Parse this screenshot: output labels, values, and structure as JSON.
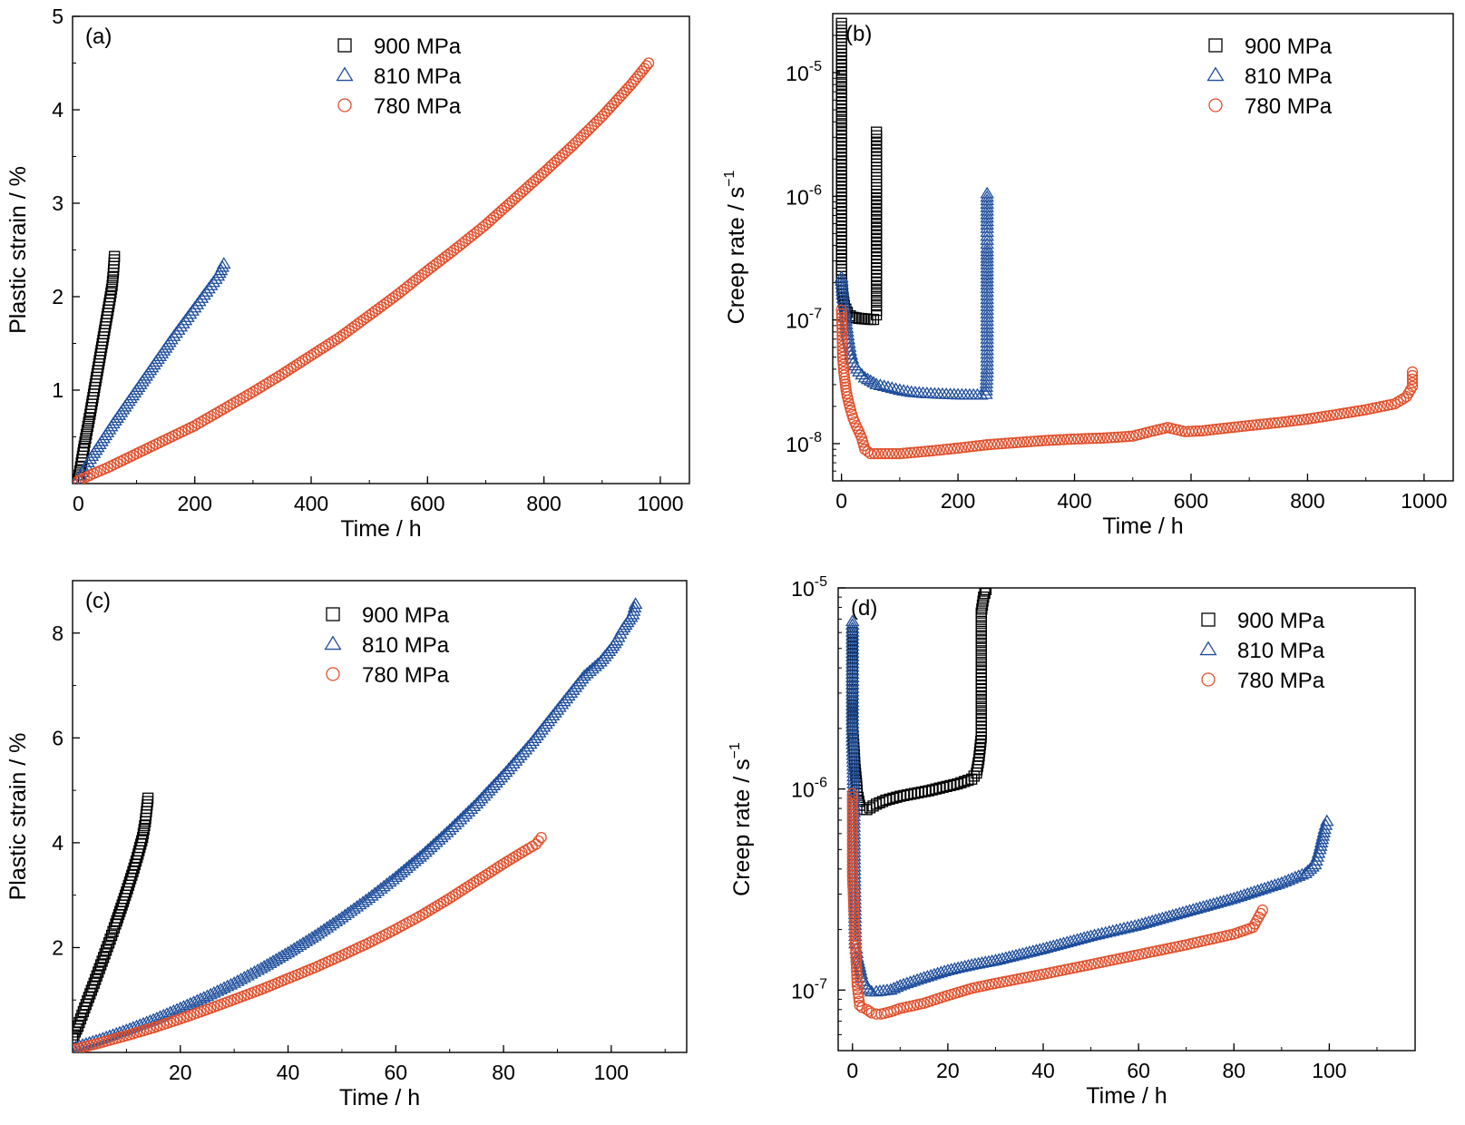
{
  "figure": {
    "series_colors": {
      "900 MPa": "#000000",
      "810 MPa": "#1f4e9c",
      "780 MPa": "#e2502c"
    }
  },
  "chart_data": [
    {
      "panel": "(a)",
      "type": "scatter",
      "xlabel": "Time / h",
      "ylabel": "Plastic strain / %",
      "xlim": [
        -10,
        1050
      ],
      "ylim": [
        0,
        5
      ],
      "x_ticks": [
        "0",
        "200",
        "400",
        "600",
        "800",
        "1000"
      ],
      "y_ticks": [
        "1",
        "2",
        "3",
        "4",
        "5"
      ],
      "y_scale": "linear",
      "legend_position": "top-center",
      "series": [
        {
          "name": "900 MPa",
          "marker": "square",
          "color": "#000000",
          "x": [
            0,
            5,
            10,
            15,
            20,
            25,
            30,
            35,
            40,
            45,
            50,
            55,
            58,
            60,
            62
          ],
          "y": [
            0.05,
            0.22,
            0.4,
            0.57,
            0.74,
            0.92,
            1.1,
            1.28,
            1.46,
            1.64,
            1.82,
            2.0,
            2.12,
            2.25,
            2.43
          ]
        },
        {
          "name": "810 MPa",
          "marker": "triangle",
          "color": "#1f4e9c",
          "x": [
            0,
            10,
            20,
            40,
            60,
            80,
            100,
            120,
            140,
            160,
            180,
            200,
            220,
            240,
            245,
            250
          ],
          "y": [
            0.05,
            0.15,
            0.26,
            0.45,
            0.64,
            0.82,
            1.0,
            1.18,
            1.36,
            1.54,
            1.71,
            1.88,
            2.05,
            2.22,
            2.28,
            2.35
          ]
        },
        {
          "name": "780 MPa",
          "marker": "circle",
          "color": "#e2502c",
          "x": [
            0,
            20,
            50,
            100,
            150,
            200,
            250,
            300,
            350,
            400,
            450,
            500,
            550,
            600,
            650,
            700,
            750,
            800,
            850,
            900,
            950,
            980
          ],
          "y": [
            0.03,
            0.09,
            0.17,
            0.32,
            0.47,
            0.62,
            0.8,
            0.98,
            1.17,
            1.37,
            1.57,
            1.8,
            2.03,
            2.28,
            2.52,
            2.77,
            3.05,
            3.33,
            3.62,
            3.93,
            4.27,
            4.5
          ]
        }
      ]
    },
    {
      "panel": "(b)",
      "type": "scatter",
      "xlabel": "Time / h",
      "ylabel_main": "Creep rate / s",
      "ylabel_sup": "−1",
      "xlim": [
        -15,
        1050
      ],
      "ylim": [
        5e-09,
        3e-05
      ],
      "y_scale": "log",
      "x_ticks": [
        "0",
        "200",
        "400",
        "600",
        "800",
        "1000"
      ],
      "y_ticks": [
        {
          "value": 1e-08,
          "mant": "10",
          "exp": "-8"
        },
        {
          "value": 1e-07,
          "mant": "10",
          "exp": "-7"
        },
        {
          "value": 1e-06,
          "mant": "10",
          "exp": "-6"
        },
        {
          "value": 1e-05,
          "mant": "10",
          "exp": "-5"
        }
      ],
      "legend_position": "top-right",
      "series": [
        {
          "name": "900 MPa",
          "marker": "square",
          "color": "#000000",
          "x": [
            0,
            0,
            0,
            0,
            0,
            0,
            0,
            0,
            0,
            0,
            2,
            5,
            10,
            15,
            20,
            30,
            40,
            50,
            55,
            60,
            60,
            60,
            60,
            60,
            60,
            60,
            60,
            60,
            60
          ],
          "y": [
            2.5e-05,
            1.5e-05,
            1e-05,
            7e-06,
            5e-06,
            3.5e-06,
            1.9e-06,
            2.7e-07,
            2.4e-07,
            2.1e-07,
            1.6e-07,
            1.3e-07,
            1.15e-07,
            1.08e-07,
            1.05e-07,
            1.03e-07,
            1.02e-07,
            1.01e-07,
            1.01e-07,
            1.1e-07,
            1.3e-07,
            2e-07,
            3.4e-07,
            5.5e-07,
            7.8e-07,
            1.1e-06,
            1.6e-06,
            2.2e-06,
            3.3e-06
          ]
        },
        {
          "name": "810 MPa",
          "marker": "triangle",
          "color": "#1f4e9c",
          "x": [
            0,
            2,
            5,
            10,
            15,
            20,
            30,
            40,
            50,
            60,
            80,
            100,
            120,
            140,
            160,
            180,
            200,
            220,
            240,
            248,
            250,
            250,
            250,
            250,
            250,
            250,
            250,
            250
          ],
          "y": [
            2.2e-07,
            1.6e-07,
            1.2e-07,
            8e-08,
            5.6e-08,
            4.5e-08,
            3.8e-08,
            3.4e-08,
            3.2e-08,
            3e-08,
            2.85e-08,
            2.7e-08,
            2.6e-08,
            2.55e-08,
            2.52e-08,
            2.5e-08,
            2.48e-08,
            2.47e-08,
            2.47e-08,
            2.5e-08,
            4e-08,
            7e-08,
            1.2e-07,
            1.8e-07,
            2.8e-07,
            3.8e-07,
            5.5e-07,
            1.05e-06
          ]
        },
        {
          "name": "780 MPa",
          "marker": "circle",
          "color": "#e2502c",
          "x": [
            0,
            1,
            2,
            4,
            6,
            8,
            10,
            13,
            16,
            20,
            25,
            30,
            35,
            40,
            50,
            100,
            150,
            200,
            250,
            300,
            350,
            400,
            450,
            500,
            530,
            560,
            590,
            620,
            650,
            700,
            750,
            800,
            850,
            900,
            950,
            970,
            980,
            980
          ],
          "y": [
            1.2e-07,
            8.5e-08,
            5e-08,
            3.8e-08,
            3.2e-08,
            2.7e-08,
            2.4e-08,
            2.1e-08,
            1.85e-08,
            1.6e-08,
            1.4e-08,
            1.25e-08,
            1.1e-08,
            9e-09,
            8.3e-09,
            8.3e-09,
            8.7e-09,
            9.2e-09,
            9.8e-09,
            1.02e-08,
            1.06e-08,
            1.09e-08,
            1.11e-08,
            1.15e-08,
            1.25e-08,
            1.35e-08,
            1.25e-08,
            1.27e-08,
            1.32e-08,
            1.4e-08,
            1.48e-08,
            1.58e-08,
            1.72e-08,
            1.88e-08,
            2.1e-08,
            2.4e-08,
            2.9e-08,
            3.8e-08
          ]
        }
      ]
    },
    {
      "panel": "(c)",
      "type": "scatter",
      "xlabel": "Time / h",
      "ylabel": "Plastic strain / %",
      "xlim": [
        0,
        114
      ],
      "ylim": [
        0,
        9
      ],
      "y_scale": "linear",
      "x_ticks": [
        "20",
        "40",
        "60",
        "80",
        "100"
      ],
      "y_ticks": [
        "2",
        "4",
        "6",
        "8"
      ],
      "legend_position": "top-center",
      "series": [
        {
          "name": "900 MPa",
          "marker": "square",
          "color": "#000000",
          "x": [
            0,
            1,
            2,
            3,
            4,
            5,
            6,
            7,
            8,
            9,
            10,
            11,
            12,
            13,
            13.5,
            14
          ],
          "y": [
            0.28,
            0.5,
            0.78,
            1.05,
            1.32,
            1.6,
            1.88,
            2.16,
            2.45,
            2.75,
            3.06,
            3.38,
            3.72,
            4.1,
            4.4,
            4.85
          ]
        },
        {
          "name": "810 MPa",
          "marker": "triangle",
          "color": "#1f4e9c",
          "x": [
            0,
            5,
            10,
            15,
            20,
            25,
            30,
            35,
            40,
            45,
            50,
            55,
            60,
            65,
            70,
            75,
            80,
            85,
            90,
            95,
            98,
            100,
            101,
            102,
            103,
            104,
            104.5
          ],
          "y": [
            0.08,
            0.24,
            0.42,
            0.62,
            0.84,
            1.07,
            1.32,
            1.6,
            1.9,
            2.22,
            2.57,
            2.94,
            3.34,
            3.77,
            4.24,
            4.74,
            5.29,
            5.88,
            6.53,
            7.18,
            7.45,
            7.7,
            7.85,
            8.05,
            8.2,
            8.35,
            8.55
          ]
        },
        {
          "name": "780 MPa",
          "marker": "circle",
          "color": "#e2502c",
          "x": [
            0,
            5,
            10,
            15,
            20,
            25,
            30,
            35,
            40,
            45,
            50,
            55,
            60,
            65,
            70,
            75,
            80,
            84,
            86,
            87
          ],
          "y": [
            0.05,
            0.18,
            0.32,
            0.47,
            0.64,
            0.82,
            1.01,
            1.2,
            1.41,
            1.62,
            1.85,
            2.09,
            2.35,
            2.63,
            2.94,
            3.27,
            3.6,
            3.85,
            3.97,
            4.1
          ]
        }
      ]
    },
    {
      "panel": "(d)",
      "type": "scatter",
      "xlabel": "Time / h",
      "ylabel_main": "Creep rate / s",
      "ylabel_sup": "−1",
      "xlim": [
        -3,
        118
      ],
      "ylim": [
        5e-08,
        1e-05
      ],
      "y_scale": "log",
      "x_ticks": [
        "0",
        "20",
        "40",
        "60",
        "80",
        "100"
      ],
      "y_ticks": [
        {
          "value": 1e-07,
          "mant": "10",
          "exp": "-7"
        },
        {
          "value": 1e-06,
          "mant": "10",
          "exp": "-6"
        },
        {
          "value": 1e-05,
          "mant": "10",
          "exp": "-5"
        }
      ],
      "legend_position": "top-right",
      "series": [
        {
          "name": "900 MPa",
          "marker": "square",
          "color": "#000000",
          "x": [
            0,
            0,
            0,
            0,
            0,
            0.3,
            0.5,
            0.8,
            1,
            1.5,
            2,
            3,
            5,
            7,
            10,
            13,
            16,
            19,
            22,
            25,
            26,
            26.5,
            27,
            27,
            27,
            27,
            27,
            27,
            27,
            27.5,
            28
          ],
          "y": [
            6e-06,
            4.5e-06,
            3.5e-06,
            2.7e-06,
            2e-06,
            1.6e-06,
            1.3e-06,
            1.1e-06,
            9.5e-07,
            8.3e-07,
            7.9e-07,
            7.9e-07,
            8.4e-07,
            8.8e-07,
            9.2e-07,
            9.5e-07,
            9.8e-07,
            1.02e-06,
            1.06e-06,
            1.12e-06,
            1.2e-06,
            1.4e-06,
            1.8e-06,
            2.3e-06,
            3e-06,
            4e-06,
            5e-06,
            6.5e-06,
            7.5e-06,
            9e-06,
            9.8e-06
          ]
        },
        {
          "name": "810 MPa",
          "marker": "triangle",
          "color": "#1f4e9c",
          "x": [
            0,
            0,
            0,
            0,
            0.2,
            0.4,
            0.6,
            0.8,
            1,
            1.5,
            2,
            3,
            4,
            5,
            8,
            10,
            15,
            20,
            25,
            30,
            40,
            50,
            60,
            70,
            80,
            90,
            95,
            97,
            98,
            99,
            99.5
          ],
          "y": [
            6.8e-06,
            4.2e-06,
            2.7e-06,
            1.8e-06,
            1.2e-06,
            4.1e-07,
            1.7e-07,
            1.6e-07,
            1.45e-07,
            1.3e-07,
            1.15e-07,
            1.02e-07,
            9.8e-08,
            9.8e-08,
            1e-07,
            1.05e-07,
            1.15e-07,
            1.25e-07,
            1.33e-07,
            1.4e-07,
            1.6e-07,
            1.85e-07,
            2.1e-07,
            2.45e-07,
            2.85e-07,
            3.4e-07,
            3.8e-07,
            4.2e-07,
            5e-07,
            6.3e-07,
            6.9e-07
          ]
        },
        {
          "name": "780 MPa",
          "marker": "circle",
          "color": "#e2502c",
          "x": [
            0,
            0,
            0.5,
            1,
            1.5,
            2,
            3,
            4,
            5,
            6,
            8,
            10,
            15,
            20,
            25,
            30,
            40,
            50,
            60,
            70,
            80,
            84,
            86
          ],
          "y": [
            9.5e-07,
            3.7e-07,
            1.95e-07,
            1.05e-07,
            8.4e-08,
            8.2e-08,
            8e-08,
            7.7e-08,
            7.6e-08,
            7.6e-08,
            7.8e-08,
            8.1e-08,
            8.6e-08,
            9.4e-08,
            1.02e-07,
            1.08e-07,
            1.2e-07,
            1.34e-07,
            1.5e-07,
            1.68e-07,
            1.9e-07,
            2.05e-07,
            2.5e-07
          ]
        }
      ]
    }
  ]
}
